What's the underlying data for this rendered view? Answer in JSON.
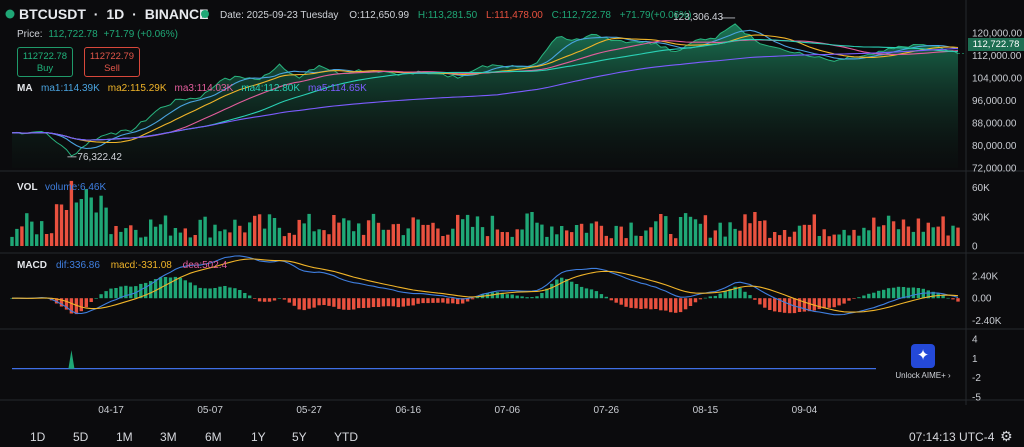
{
  "header": {
    "symbol": "BTCUSDT",
    "sep1": "·",
    "interval": "1D",
    "sep2": "·",
    "exchange": "BINANCE",
    "date": "Date: 2025-09-23 Tuesday",
    "open": "O:112,650.99",
    "high": "H:113,281.50",
    "low": "L:111,478.00",
    "close": "C:112,722.78",
    "change": "+71.79(+0.06%)"
  },
  "price_line": {
    "label": "Price:",
    "value": "112,722.78",
    "change": "+71.79 (+0.06%)"
  },
  "trade": {
    "buy_price": "112722.78",
    "buy_label": "Buy",
    "sell_price": "112722.79",
    "sell_label": "Sell"
  },
  "ma_legend": {
    "title": "MA",
    "items": [
      {
        "text": "ma1:114.39K",
        "color": "#4aa3df"
      },
      {
        "text": "ma2:115.29K",
        "color": "#f0b429"
      },
      {
        "text": "ma3:114.03K",
        "color": "#e35d9c"
      },
      {
        "text": "ma4:112.80K",
        "color": "#2ad0b5"
      },
      {
        "text": "ma5:114.65K",
        "color": "#7c5cff"
      }
    ]
  },
  "vol_legend": {
    "title": "VOL",
    "value": "volume:6.46K"
  },
  "macd_legend": {
    "title": "MACD",
    "dif": "dif:336.86",
    "macd": "macd:-331.08",
    "dea": "dea:502.4"
  },
  "annotations": {
    "high": "123,306.43",
    "low": "76,322.42"
  },
  "current_price_tag": "112,722.78",
  "aime": {
    "label": "Unlock AIME+ ›"
  },
  "toolbar": [
    "1D",
    "5D",
    "1M",
    "3M",
    "6M",
    "1Y",
    "5Y",
    "YTD"
  ],
  "clock": "07:14:13 UTC-4",
  "colors": {
    "up": "#1fa776",
    "down": "#e9513f",
    "dif": "#3f7fe0",
    "dea": "#f0b429",
    "area": "#1d7a58"
  },
  "chart_data": [
    {
      "type": "area",
      "name": "price",
      "y_ticks": [
        "120,000.00",
        "112,000.00",
        "104,000.00",
        "96,000.00",
        "88,000.00",
        "80,000.00",
        "72,000.00"
      ],
      "ylim": [
        72000,
        124000
      ],
      "x_ticks": [
        "04-17",
        "05-07",
        "05-27",
        "06-16",
        "07-06",
        "07-26",
        "08-15",
        "09-04"
      ],
      "keyframes": [
        [
          0,
          84500
        ],
        [
          6,
          85000
        ],
        [
          10,
          80000
        ],
        [
          12,
          76322
        ],
        [
          16,
          82000
        ],
        [
          20,
          84500
        ],
        [
          24,
          85000
        ],
        [
          30,
          93500
        ],
        [
          34,
          96500
        ],
        [
          38,
          97000
        ],
        [
          42,
          103000
        ],
        [
          46,
          104500
        ],
        [
          50,
          103500
        ],
        [
          54,
          109000
        ],
        [
          58,
          104000
        ],
        [
          62,
          108500
        ],
        [
          66,
          105500
        ],
        [
          70,
          107000
        ],
        [
          74,
          106000
        ],
        [
          78,
          105000
        ],
        [
          82,
          106500
        ],
        [
          86,
          105500
        ],
        [
          90,
          104000
        ],
        [
          94,
          107500
        ],
        [
          98,
          108500
        ],
        [
          102,
          108000
        ],
        [
          106,
          109500
        ],
        [
          110,
          118500
        ],
        [
          114,
          118000
        ],
        [
          118,
          119500
        ],
        [
          122,
          117500
        ],
        [
          126,
          117000
        ],
        [
          130,
          116500
        ],
        [
          134,
          113500
        ],
        [
          138,
          117500
        ],
        [
          142,
          118000
        ],
        [
          146,
          123306
        ],
        [
          150,
          117500
        ],
        [
          154,
          115000
        ],
        [
          158,
          113000
        ],
        [
          162,
          111500
        ],
        [
          166,
          110000
        ],
        [
          170,
          111500
        ],
        [
          174,
          112500
        ],
        [
          178,
          114500
        ],
        [
          182,
          116000
        ],
        [
          186,
          115500
        ],
        [
          191,
          112722
        ]
      ]
    },
    {
      "type": "bar",
      "name": "volume",
      "y_ticks": [
        "60K",
        "30K",
        "0"
      ],
      "ylim": [
        0,
        70000
      ]
    },
    {
      "type": "bar",
      "name": "macd",
      "y_ticks": [
        "2.40K",
        "0.00",
        "-2.40K"
      ],
      "ylim": [
        -2900,
        3600
      ]
    },
    {
      "type": "line",
      "name": "aux-indicator",
      "y_ticks": [
        "4",
        "1",
        "-2",
        "-5"
      ],
      "ylim": [
        -5.5,
        4.5
      ]
    }
  ]
}
